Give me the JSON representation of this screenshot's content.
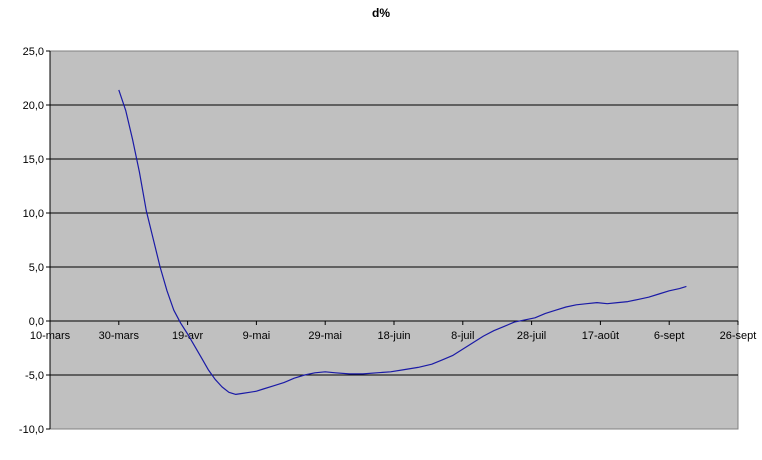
{
  "chart_data": {
    "type": "line",
    "title": "d%",
    "xlabel": "",
    "ylabel": "",
    "x_ticks": [
      "10-mars",
      "30-mars",
      "19-avr",
      "9-mai",
      "29-mai",
      "18-juin",
      "8-juil",
      "28-juil",
      "17-août",
      "6-sept",
      "26-sept"
    ],
    "y_ticks": [
      "25,0",
      "20,0",
      "15,0",
      "10,0",
      "5,0",
      "0,0",
      "-5,0",
      "-10,0"
    ],
    "xlim": [
      "2020-03-10",
      "2020-09-26"
    ],
    "ylim": [
      -10,
      25
    ],
    "grid": true,
    "legend": "none",
    "colors": {
      "plot_background": "#c0c0c0",
      "line": "#1a1aa6",
      "grid": "#000000"
    },
    "series": [
      {
        "x": [
          "2020-03-30",
          "2020-04-01",
          "2020-04-03",
          "2020-04-05",
          "2020-04-07",
          "2020-04-09",
          "2020-04-11",
          "2020-04-13",
          "2020-04-15",
          "2020-04-17",
          "2020-04-19",
          "2020-04-21",
          "2020-04-23",
          "2020-04-25",
          "2020-04-27",
          "2020-04-29",
          "2020-05-01",
          "2020-05-03",
          "2020-05-05",
          "2020-05-07",
          "2020-05-09",
          "2020-05-11",
          "2020-05-14",
          "2020-05-17",
          "2020-05-20",
          "2020-05-23",
          "2020-05-26",
          "2020-05-29",
          "2020-06-01",
          "2020-06-05",
          "2020-06-09",
          "2020-06-13",
          "2020-06-17",
          "2020-06-21",
          "2020-06-25",
          "2020-06-29",
          "2020-07-02",
          "2020-07-05",
          "2020-07-08",
          "2020-07-11",
          "2020-07-14",
          "2020-07-17",
          "2020-07-20",
          "2020-07-23",
          "2020-07-26",
          "2020-07-29",
          "2020-08-01",
          "2020-08-04",
          "2020-08-07",
          "2020-08-10",
          "2020-08-13",
          "2020-08-16",
          "2020-08-19",
          "2020-08-22",
          "2020-08-25",
          "2020-08-28",
          "2020-08-31",
          "2020-09-03",
          "2020-09-06",
          "2020-09-09",
          "2020-09-11"
        ],
        "values": [
          21.4,
          19.5,
          16.8,
          13.8,
          10.2,
          7.6,
          5.0,
          2.8,
          1.0,
          -0.2,
          -1.2,
          -2.3,
          -3.4,
          -4.5,
          -5.4,
          -6.1,
          -6.6,
          -6.8,
          -6.7,
          -6.6,
          -6.5,
          -6.3,
          -6.0,
          -5.7,
          -5.3,
          -5.0,
          -4.8,
          -4.7,
          -4.8,
          -4.9,
          -4.9,
          -4.8,
          -4.7,
          -4.5,
          -4.3,
          -4.0,
          -3.6,
          -3.2,
          -2.6,
          -2.0,
          -1.4,
          -0.9,
          -0.5,
          -0.1,
          0.1,
          0.3,
          0.7,
          1.0,
          1.3,
          1.5,
          1.6,
          1.7,
          1.6,
          1.7,
          1.8,
          2.0,
          2.2,
          2.5,
          2.8,
          3.0,
          3.2
        ]
      }
    ]
  }
}
